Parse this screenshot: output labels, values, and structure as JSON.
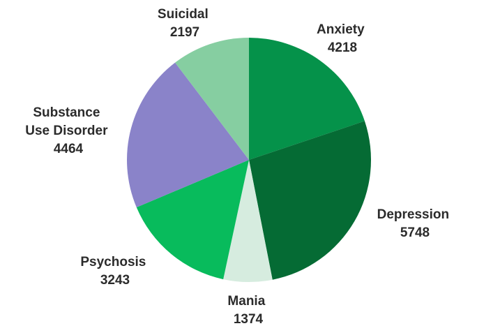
{
  "chart_data": {
    "type": "pie",
    "title": "",
    "start_angle_deg": 0,
    "direction": "clockwise",
    "legend": "none",
    "slices": [
      {
        "label": "Anxiety",
        "value": 4218,
        "color": "#05924a"
      },
      {
        "label": "Depression",
        "value": 5748,
        "color": "#056b34"
      },
      {
        "label": "Mania",
        "value": 1374,
        "color": "#d6ecdf"
      },
      {
        "label": "Psychosis",
        "value": 3243,
        "color": "#08bb5c"
      },
      {
        "label": "Substance Use Disorder",
        "value": 4464,
        "color": "#8a83c9"
      },
      {
        "label": "Suicidal",
        "value": 2197,
        "color": "#86cea1"
      }
    ]
  }
}
